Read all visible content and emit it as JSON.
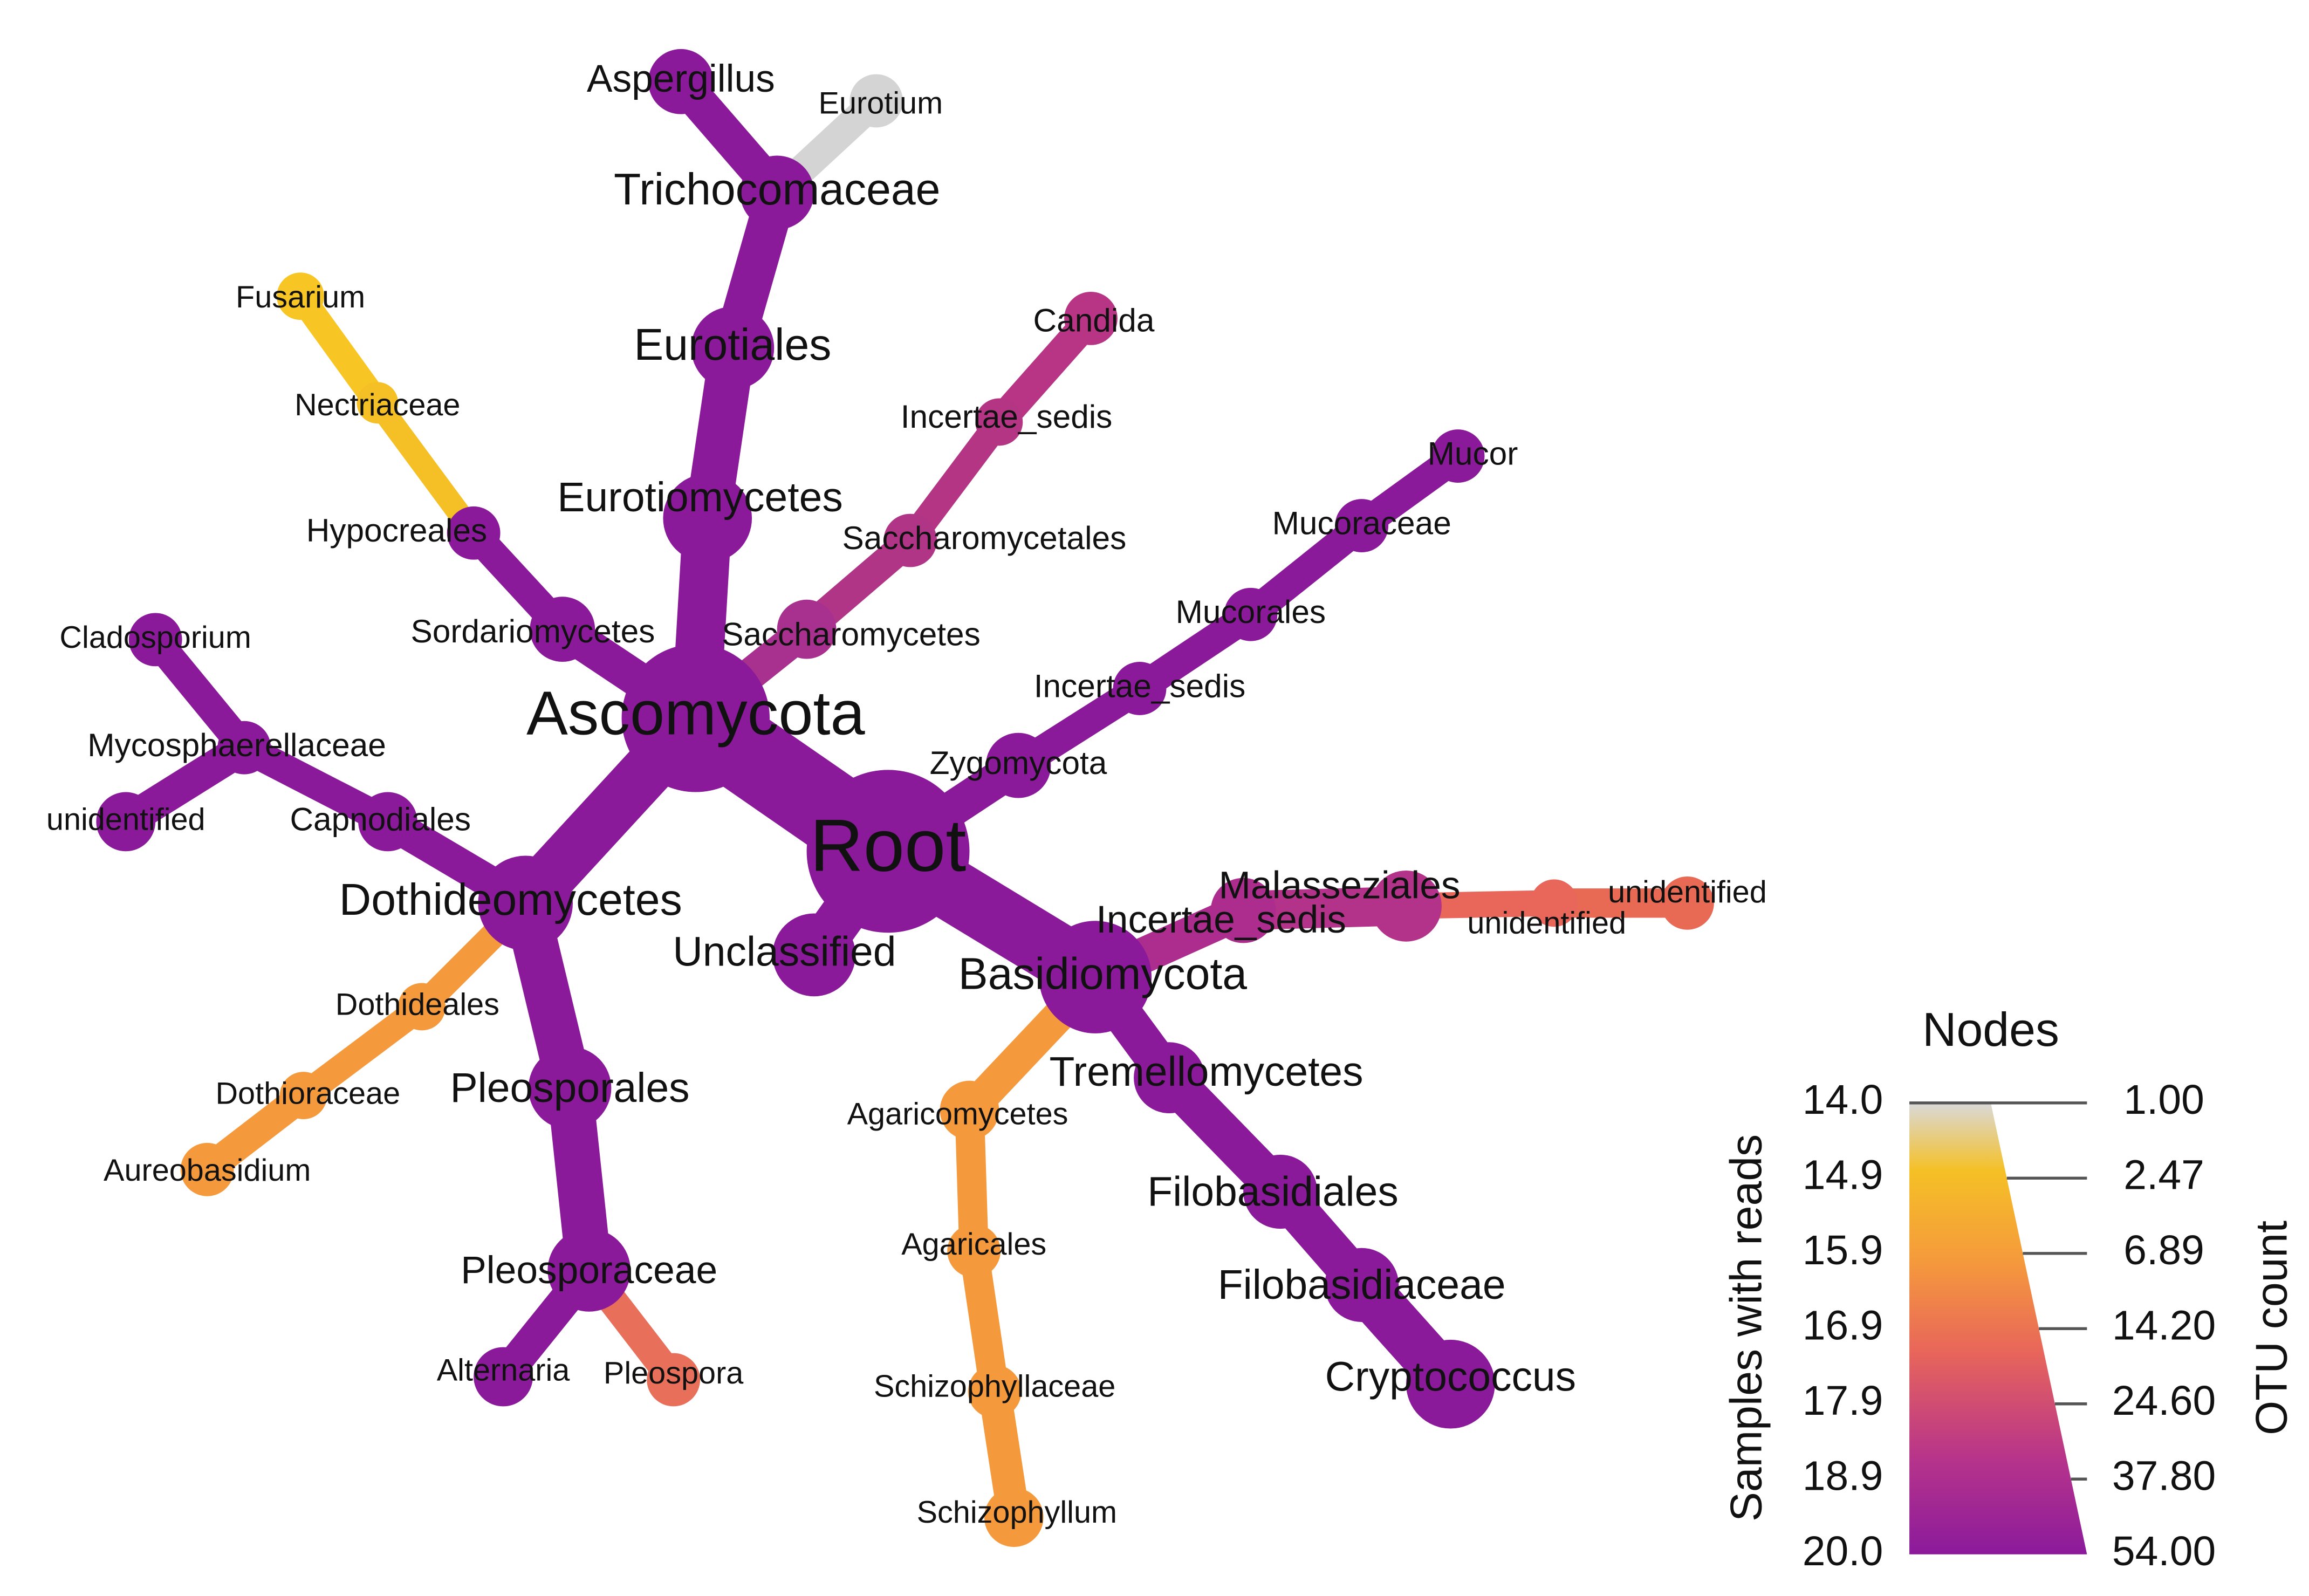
{
  "nodes": [
    {
      "label": "Root",
      "color": "#8b1a9b"
    },
    {
      "label": "Ascomycota",
      "color": "#8b1a9b"
    },
    {
      "label": "Basidiomycota",
      "color": "#8b1a9b"
    },
    {
      "label": "Zygomycota",
      "color": "#8b1a9b"
    },
    {
      "label": "Unclassified",
      "color": "#8b1a9b"
    },
    {
      "label": "Incertae_sedis",
      "color": "#ad2d8f"
    },
    {
      "label": "Malasseziales",
      "color": "#b4338a"
    },
    {
      "label": "unidentified",
      "color": "#e8665a"
    },
    {
      "label": "unidentified",
      "color": "#e86a55"
    },
    {
      "label": "Eurotiomycetes",
      "color": "#8b1a9b"
    },
    {
      "label": "Saccharomycetes",
      "color": "#a8308e"
    },
    {
      "label": "Sordariomycetes",
      "color": "#8b1a9b"
    },
    {
      "label": "Dothideomycetes",
      "color": "#8b1a9b"
    },
    {
      "label": "Eurotiales",
      "color": "#8b1a9b"
    },
    {
      "label": "Trichocomaceae",
      "color": "#8b1a9b"
    },
    {
      "label": "Aspergillus",
      "color": "#8b1a9b"
    },
    {
      "label": "Eurotium",
      "color": "#d4d4d4"
    },
    {
      "label": "Saccharomycetales",
      "color": "#b03587"
    },
    {
      "label": "Incertae_sedis",
      "color": "#b43584"
    },
    {
      "label": "Candida",
      "color": "#b83585"
    },
    {
      "label": "Hypocreales",
      "color": "#8b1a9b"
    },
    {
      "label": "Nectriaceae",
      "color": "#f5c026"
    },
    {
      "label": "Fusarium",
      "color": "#f8c624"
    },
    {
      "label": "Incertae_sedis",
      "color": "#8b1a9b"
    },
    {
      "label": "Mucorales",
      "color": "#8b1a9b"
    },
    {
      "label": "Mucoraceae",
      "color": "#8b1a9b"
    },
    {
      "label": "Mucor",
      "color": "#8b1a9b"
    },
    {
      "label": "Capnodiales",
      "color": "#8b1a9b"
    },
    {
      "label": "Mycosphaerellaceae",
      "color": "#8b1a9b"
    },
    {
      "label": "Cladosporium",
      "color": "#8b1a9b"
    },
    {
      "label": "unidentified",
      "color": "#8b1a9b"
    },
    {
      "label": "Dothideales",
      "color": "#f59a3c"
    },
    {
      "label": "Dothioraceae",
      "color": "#f59a3c"
    },
    {
      "label": "Aureobasidium",
      "color": "#f59a3c"
    },
    {
      "label": "Pleosporales",
      "color": "#8b1a9b"
    },
    {
      "label": "Pleosporaceae",
      "color": "#8b1a9b"
    },
    {
      "label": "Alternaria",
      "color": "#8b1a9b"
    },
    {
      "label": "Pleospora",
      "color": "#e8705a"
    },
    {
      "label": "Agaricomycetes",
      "color": "#f59a3c"
    },
    {
      "label": "Agaricales",
      "color": "#f59a3c"
    },
    {
      "label": "Schizophyllaceae",
      "color": "#f59a3c"
    },
    {
      "label": "Schizophyllum",
      "color": "#f59a3c"
    },
    {
      "label": "Tremellomycetes",
      "color": "#8b1a9b"
    },
    {
      "label": "Filobasidiales",
      "color": "#8b1a9b"
    },
    {
      "label": "Filobasidiaceae",
      "color": "#8b1a9b"
    },
    {
      "label": "Cryptococcus",
      "color": "#8b1a9b"
    }
  ],
  "legend": {
    "title": "Nodes",
    "left_label": "Samples with reads",
    "right_label": "OTU count",
    "left_ticks": [
      "14.0",
      "14.9",
      "15.9",
      "16.9",
      "17.9",
      "18.9",
      "20.0"
    ],
    "right_ticks": [
      "1.00",
      "2.47",
      "6.89",
      "14.20",
      "24.60",
      "37.80",
      "54.00"
    ]
  }
}
